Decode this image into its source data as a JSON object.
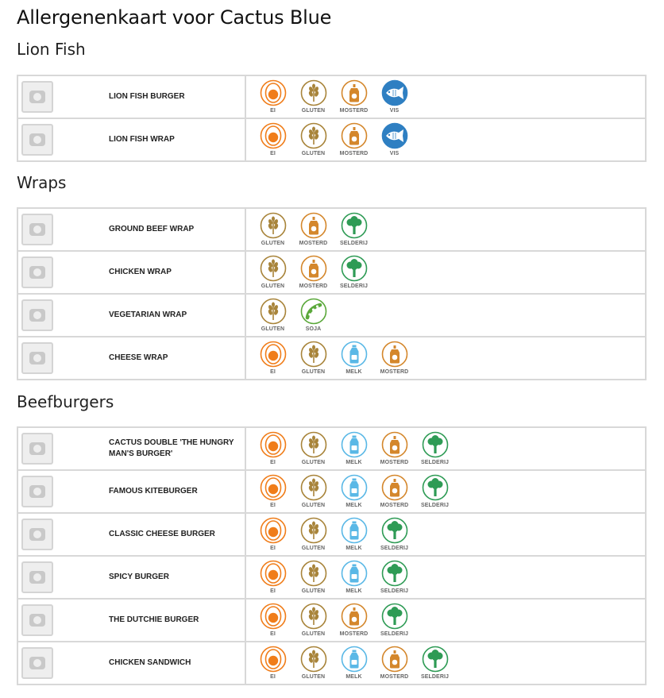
{
  "page": {
    "title": "Allergenenkaart voor Cactus Blue"
  },
  "allergen_labels": {
    "ei": "EI",
    "gluten": "GLUTEN",
    "mosterd": "MOSTERD",
    "vis": "VIS",
    "selderij": "SELDERIJ",
    "soja": "SOJA",
    "melk": "MELK"
  },
  "colors": {
    "ei": "#f07d1a",
    "gluten": "#a8843a",
    "mosterd": "#d4872c",
    "vis": "#2e7fc2",
    "selderij": "#2e9b55",
    "soja": "#5aa83a",
    "melk": "#5ab8e6"
  },
  "sections": [
    {
      "title": "Lion Fish",
      "dishes": [
        {
          "name": "LION FISH BURGER",
          "allergens": [
            "ei",
            "gluten",
            "mosterd",
            "vis"
          ]
        },
        {
          "name": "LION FISH WRAP",
          "allergens": [
            "ei",
            "gluten",
            "mosterd",
            "vis"
          ]
        }
      ]
    },
    {
      "title": "Wraps",
      "dishes": [
        {
          "name": "GROUND BEEF WRAP",
          "allergens": [
            "gluten",
            "mosterd",
            "selderij"
          ]
        },
        {
          "name": "CHICKEN WRAP",
          "allergens": [
            "gluten",
            "mosterd",
            "selderij"
          ]
        },
        {
          "name": "VEGETARIAN WRAP",
          "allergens": [
            "gluten",
            "soja"
          ]
        },
        {
          "name": "CHEESE WRAP",
          "allergens": [
            "ei",
            "gluten",
            "melk",
            "mosterd"
          ]
        }
      ]
    },
    {
      "title": "Beefburgers",
      "dishes": [
        {
          "name": "CACTUS DOUBLE 'THE HUNGRY MAN'S BURGER'",
          "allergens": [
            "ei",
            "gluten",
            "melk",
            "mosterd",
            "selderij"
          ]
        },
        {
          "name": "FAMOUS KITEBURGER",
          "allergens": [
            "ei",
            "gluten",
            "melk",
            "mosterd",
            "selderij"
          ]
        },
        {
          "name": "CLASSIC CHEESE BURGER",
          "allergens": [
            "ei",
            "gluten",
            "melk",
            "selderij"
          ]
        },
        {
          "name": "SPICY BURGER",
          "allergens": [
            "ei",
            "gluten",
            "melk",
            "selderij"
          ]
        },
        {
          "name": "THE DUTCHIE BURGER",
          "allergens": [
            "ei",
            "gluten",
            "mosterd",
            "selderij"
          ]
        },
        {
          "name": "CHICKEN SANDWICH",
          "allergens": [
            "ei",
            "gluten",
            "melk",
            "mosterd",
            "selderij"
          ]
        }
      ]
    }
  ]
}
